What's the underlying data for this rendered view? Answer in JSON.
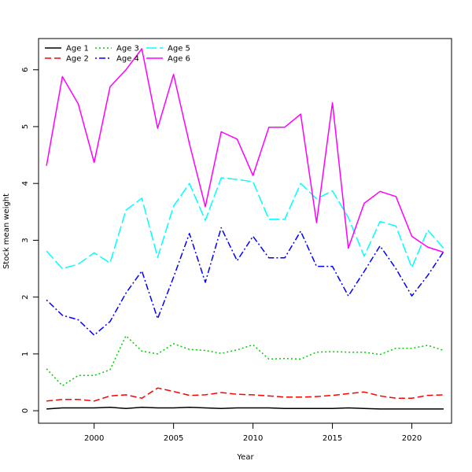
{
  "chart_data": {
    "type": "line",
    "title": "",
    "xlabel": "Year",
    "ylabel": "Stock mean weight",
    "xlim": [
      1996.5,
      2022.5
    ],
    "ylim": [
      -0.22,
      6.55
    ],
    "x_ticks": [
      2000,
      2005,
      2010,
      2015,
      2020
    ],
    "y_ticks": [
      0,
      1,
      2,
      3,
      4,
      5,
      6
    ],
    "grid": false,
    "legend_position": "top-left",
    "x": [
      1997,
      1998,
      1999,
      2000,
      2001,
      2002,
      2003,
      2004,
      2005,
      2006,
      2007,
      2008,
      2009,
      2010,
      2011,
      2012,
      2013,
      2014,
      2015,
      2016,
      2017,
      2018,
      2019,
      2020,
      2021,
      2022
    ],
    "series": [
      {
        "name": "Age 1",
        "color": "#000000",
        "dash": "solid",
        "values": [
          0.03,
          0.05,
          0.05,
          0.05,
          0.06,
          0.04,
          0.06,
          0.05,
          0.05,
          0.06,
          0.05,
          0.04,
          0.05,
          0.05,
          0.05,
          0.04,
          0.04,
          0.04,
          0.04,
          0.05,
          0.04,
          0.03,
          0.03,
          0.03,
          0.03,
          0.03
        ]
      },
      {
        "name": "Age 2",
        "color": "#ff0000",
        "dash": "dashed",
        "values": [
          0.17,
          0.2,
          0.2,
          0.17,
          0.26,
          0.28,
          0.22,
          0.4,
          0.34,
          0.27,
          0.28,
          0.32,
          0.29,
          0.28,
          0.26,
          0.24,
          0.24,
          0.25,
          0.27,
          0.3,
          0.33,
          0.26,
          0.22,
          0.22,
          0.27,
          0.28
        ]
      },
      {
        "name": "Age 3",
        "color": "#00cd00",
        "dash": "dotted",
        "values": [
          0.74,
          0.44,
          0.62,
          0.62,
          0.72,
          1.32,
          1.05,
          1.0,
          1.18,
          1.08,
          1.06,
          1.01,
          1.07,
          1.16,
          0.91,
          0.92,
          0.91,
          1.03,
          1.04,
          1.03,
          1.03,
          0.99,
          1.1,
          1.1,
          1.15,
          1.06
        ]
      },
      {
        "name": "Age 4",
        "color": "#0000ff",
        "dash": "dotdash",
        "values": [
          1.95,
          1.68,
          1.6,
          1.33,
          1.57,
          2.07,
          2.46,
          1.62,
          2.35,
          3.12,
          2.26,
          3.22,
          2.64,
          3.07,
          2.69,
          2.69,
          3.16,
          2.54,
          2.54,
          2.02,
          2.45,
          2.9,
          2.5,
          2.02,
          2.38,
          2.8
        ]
      },
      {
        "name": "Age 5",
        "color": "#00ffff",
        "dash": "longdash",
        "values": [
          2.81,
          2.5,
          2.58,
          2.78,
          2.6,
          3.53,
          3.74,
          2.7,
          3.6,
          4.0,
          3.35,
          4.1,
          4.07,
          4.03,
          3.37,
          3.37,
          4.0,
          3.73,
          3.87,
          3.4,
          2.72,
          3.33,
          3.25,
          2.52,
          3.18,
          2.86
        ]
      },
      {
        "name": "Age 6",
        "color": "#ff00ff",
        "dash": "solid",
        "values": [
          4.31,
          5.88,
          5.4,
          4.37,
          5.7,
          6.0,
          6.37,
          4.97,
          5.92,
          4.7,
          3.59,
          4.91,
          4.78,
          4.14,
          4.99,
          4.99,
          5.22,
          3.31,
          5.42,
          2.86,
          3.65,
          3.86,
          3.77,
          3.07,
          2.88,
          2.79
        ]
      }
    ]
  }
}
